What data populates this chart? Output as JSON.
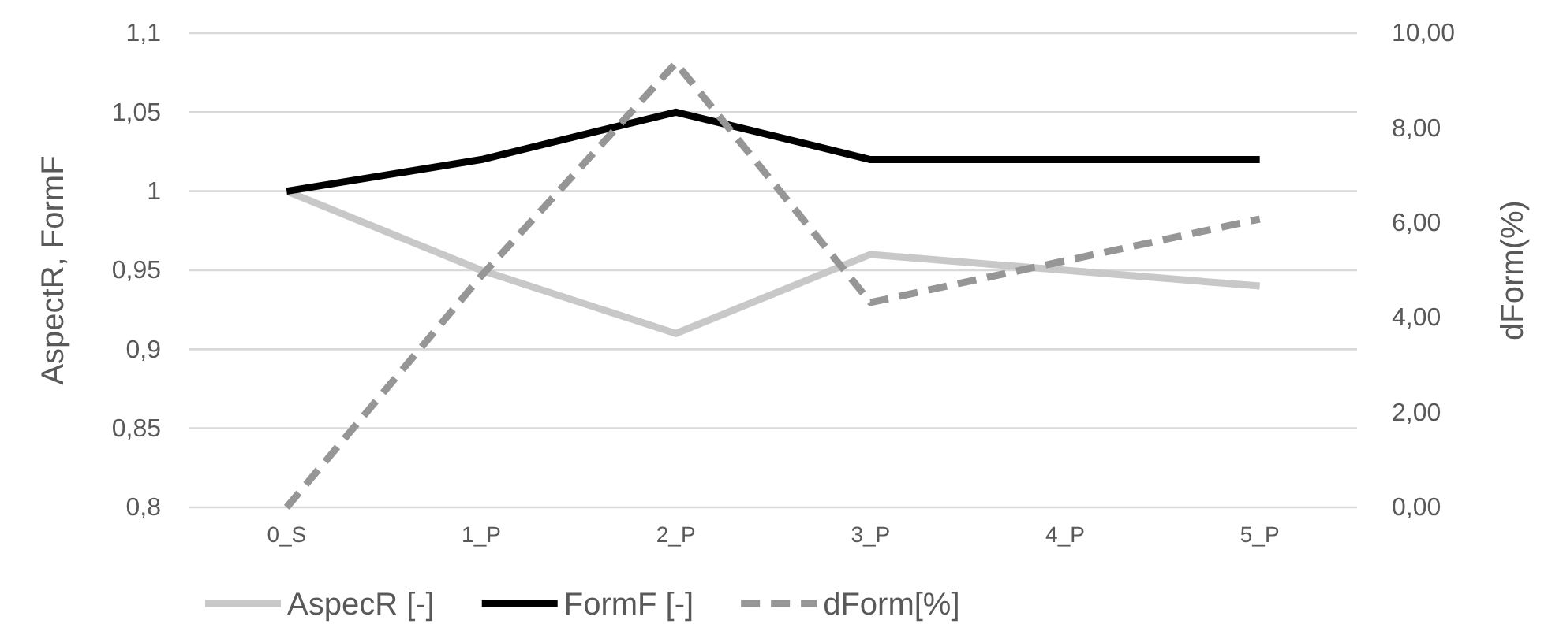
{
  "chart_data": {
    "type": "line",
    "categories": [
      "0_S",
      "1_P",
      "2_P",
      "3_P",
      "4_P",
      "5_P"
    ],
    "ylabel": "AspectR, FormF",
    "y2label": "dForm(%)",
    "ylim": [
      0.8,
      1.1
    ],
    "yticks": [
      {
        "value": 0.8,
        "label": "0,8"
      },
      {
        "value": 0.85,
        "label": "0,85"
      },
      {
        "value": 0.9,
        "label": "0,9"
      },
      {
        "value": 0.95,
        "label": "0,95"
      },
      {
        "value": 1,
        "label": "1"
      },
      {
        "value": 1.05,
        "label": "1,05"
      },
      {
        "value": 1.1,
        "label": "1,1"
      }
    ],
    "y2lim": [
      0,
      10
    ],
    "y2ticks": [
      {
        "value": 0,
        "label": "0,00"
      },
      {
        "value": 2,
        "label": "2,00"
      },
      {
        "value": 4,
        "label": "4,00"
      },
      {
        "value": 6,
        "label": "6,00"
      },
      {
        "value": 8,
        "label": "8,00"
      },
      {
        "value": 10,
        "label": "10,00"
      }
    ],
    "grid": "y",
    "legend": "bottom",
    "series": [
      {
        "name": "AspecR [-]",
        "color": "#c8c8c8",
        "values": [
          1,
          0.95,
          0.91,
          0.96,
          0.95,
          0.94
        ],
        "line_style": "solid"
      },
      {
        "name": "FormF [-]",
        "color": "#000000",
        "values": [
          1,
          1.02,
          1.05,
          1.02,
          1.02,
          1.02
        ],
        "line_style": "solid"
      },
      {
        "name": "dForm[%]",
        "color": "#969696",
        "values": [
          0,
          4.88,
          9.37,
          4.32,
          5.2,
          6.08
        ],
        "axis": "y2",
        "line_style": "dashed"
      }
    ]
  }
}
